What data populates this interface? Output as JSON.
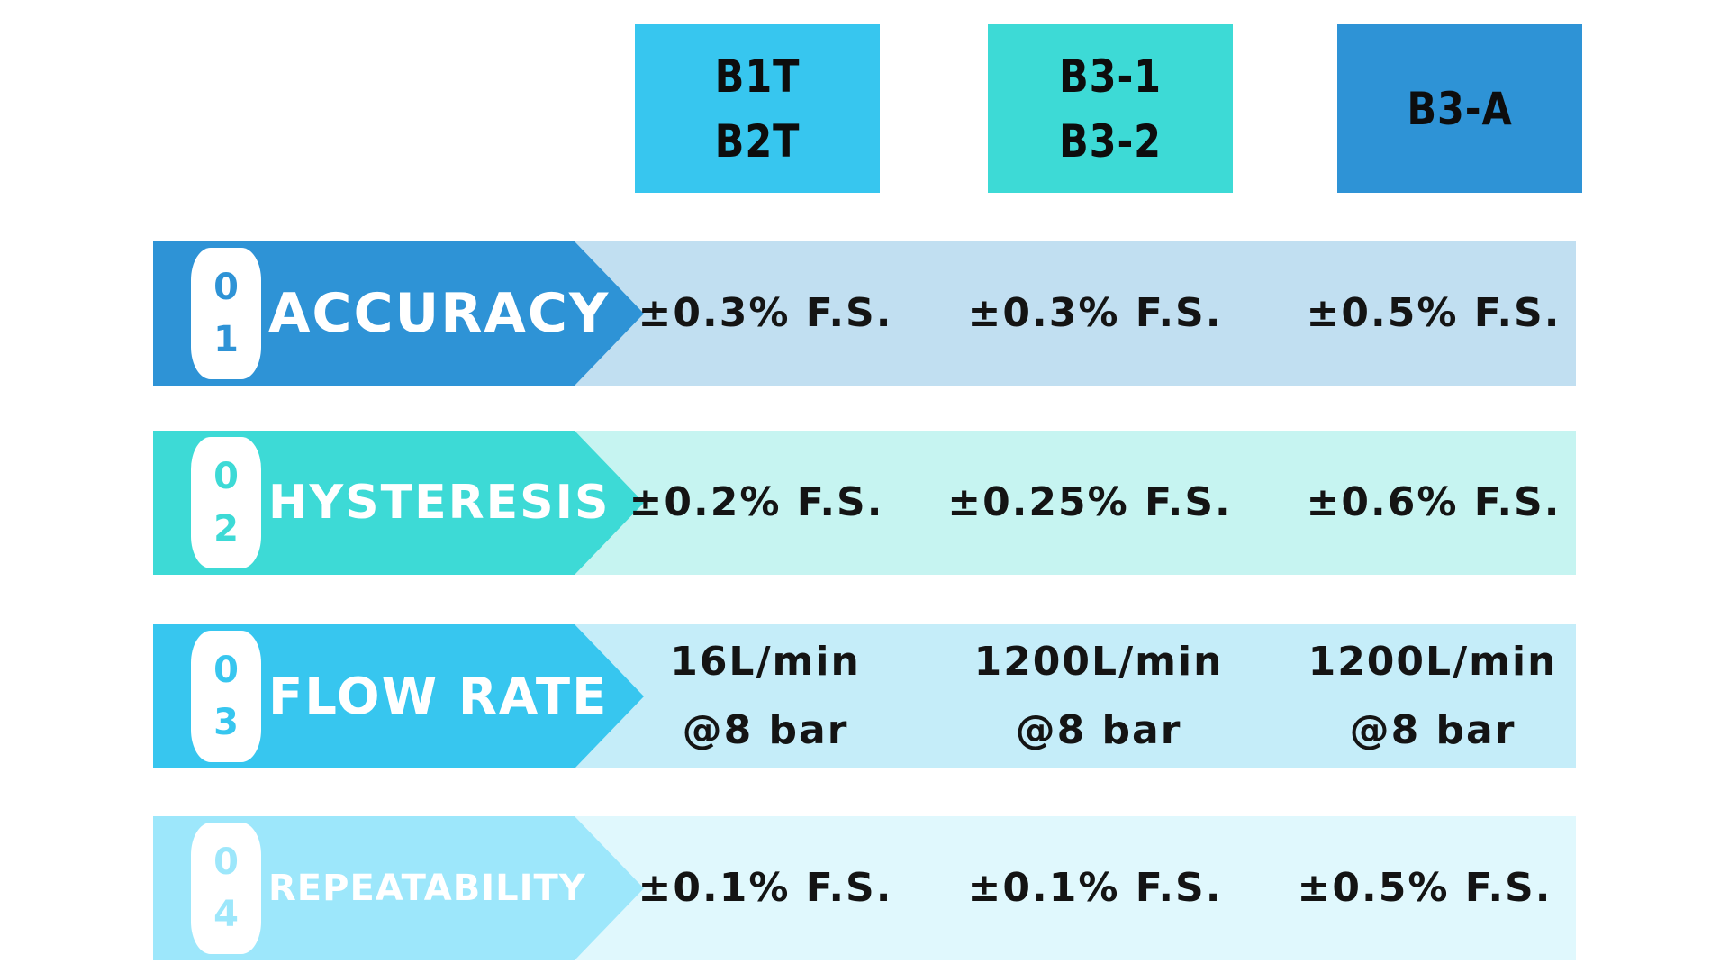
{
  "columns": [
    {
      "lines": [
        "B1T",
        "B2T"
      ],
      "color": "#37c6ef"
    },
    {
      "lines": [
        "B3-1",
        "B3-2"
      ],
      "color": "#3ddad6"
    },
    {
      "lines": [
        "B3-A"
      ],
      "color": "#2e93d6"
    }
  ],
  "rows": [
    {
      "digits": [
        "0",
        "1"
      ],
      "label": "ACCURACY",
      "values": [
        [
          "±0.3% F.S."
        ],
        [
          "±0.3% F.S."
        ],
        [
          "±0.5% F.S."
        ]
      ],
      "accent": "#2e93d6",
      "bg": "#c1dff1"
    },
    {
      "digits": [
        "0",
        "2"
      ],
      "label": "HYSTERESIS",
      "values": [
        [
          "±0.2% F.S."
        ],
        [
          "±0.25% F.S."
        ],
        [
          "±0.6% F.S."
        ]
      ],
      "accent": "#3ddad6",
      "bg": "#c6f4f1"
    },
    {
      "digits": [
        "0",
        "3"
      ],
      "label": "FLOW RATE",
      "values": [
        [
          "16L/min",
          "@8 bar"
        ],
        [
          "1200L/min",
          "@8 bar"
        ],
        [
          "1200L/min",
          "@8 bar"
        ]
      ],
      "accent": "#37c6ef",
      "bg": "#c5edf9"
    },
    {
      "digits": [
        "0",
        "4"
      ],
      "label": "REPEATABILITY",
      "values": [
        [
          "±0.1% F.S."
        ],
        [
          "±0.1% F.S."
        ],
        [
          "±0.5% F.S."
        ]
      ],
      "accent": "#9de7fb",
      "bg": "#e0f8fd"
    }
  ]
}
